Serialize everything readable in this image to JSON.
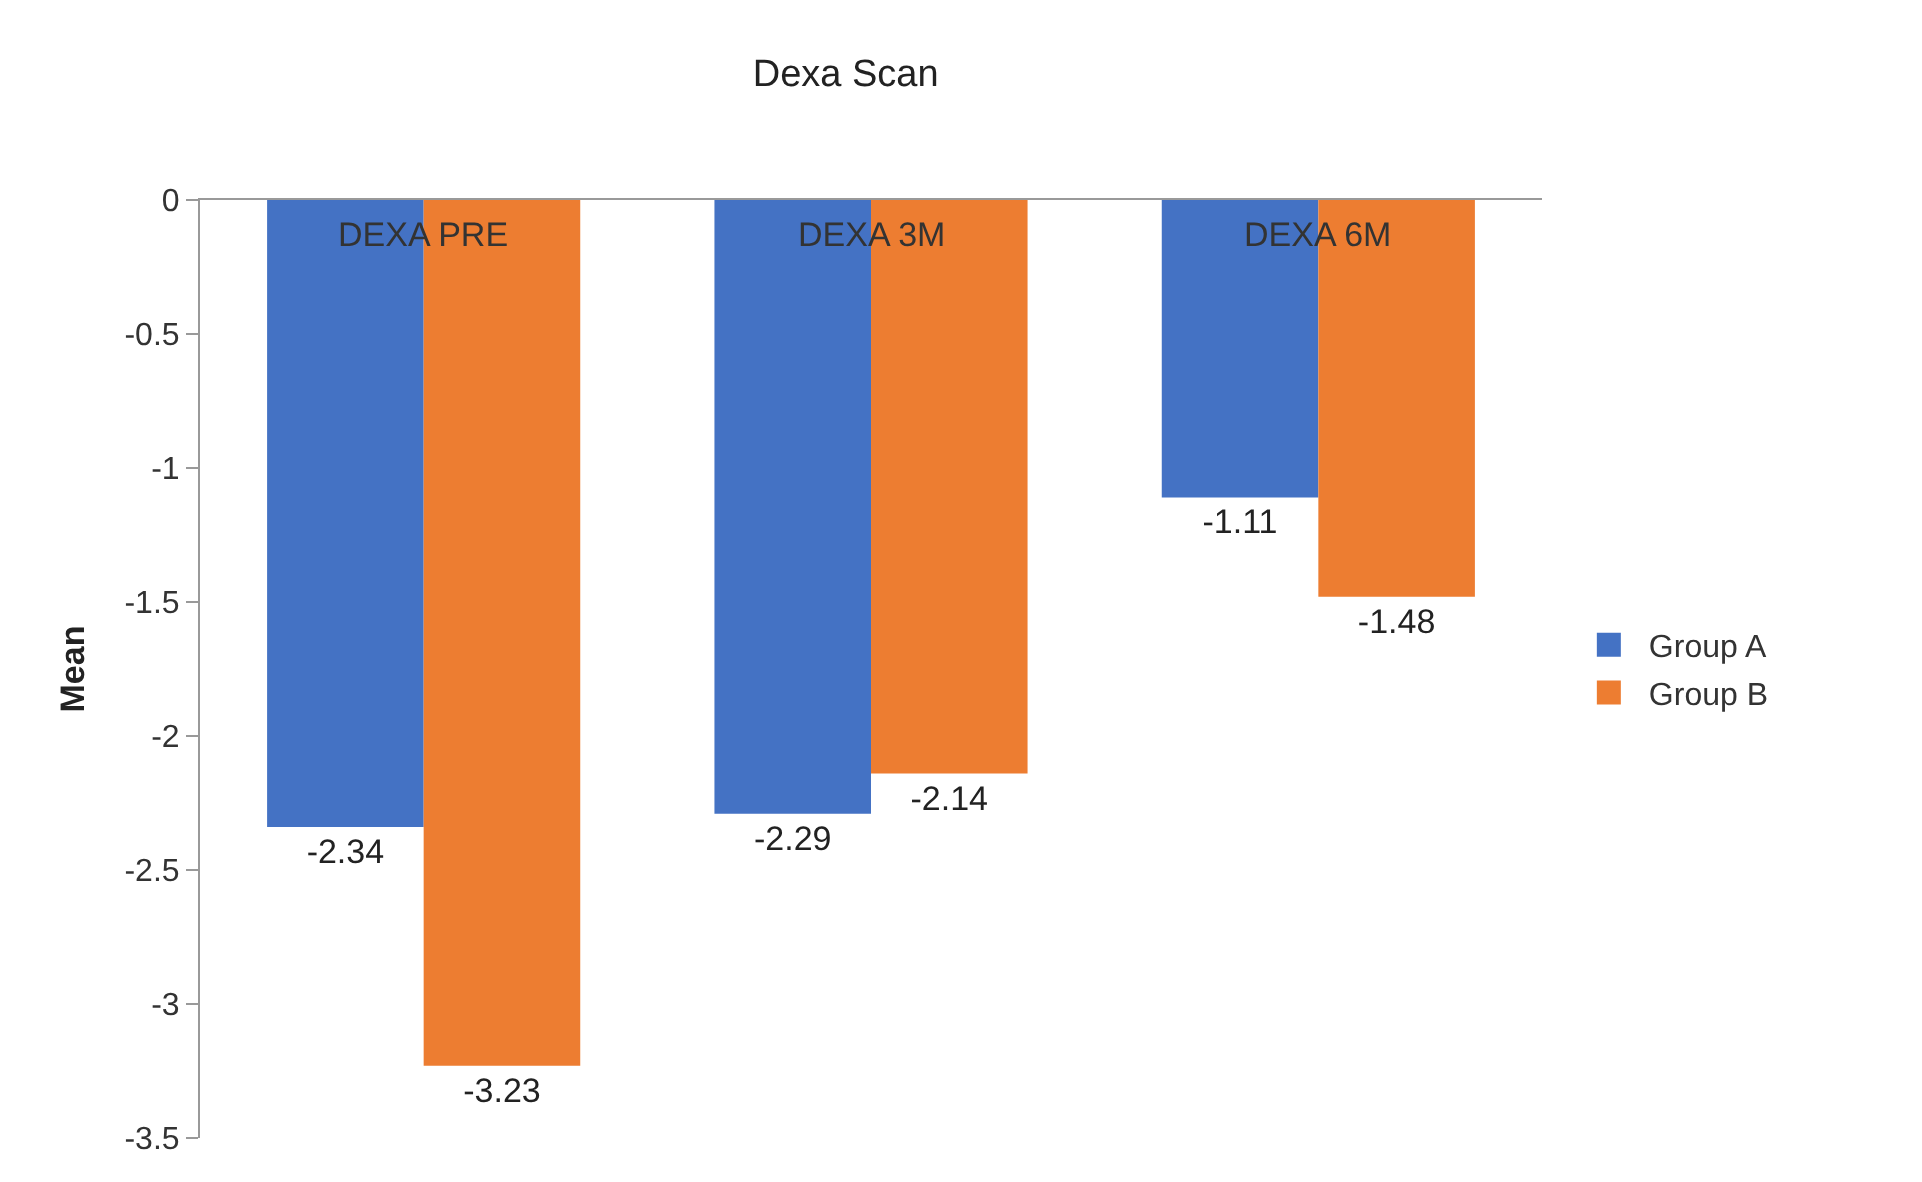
{
  "chart_data": {
    "type": "bar",
    "title": "Dexa Scan",
    "ylabel": "Mean",
    "categories": [
      "DEXA PRE",
      "DEXA 3M",
      "DEXA 6M"
    ],
    "series": [
      {
        "name": "Group A",
        "color": "#4472c4",
        "values": [
          -2.34,
          -2.29,
          -1.11
        ]
      },
      {
        "name": "Group B",
        "color": "#ed7d31",
        "values": [
          -3.23,
          -2.14,
          -1.48
        ]
      }
    ],
    "ylim": [
      -3.5,
      0
    ],
    "yticks": [
      0,
      -0.5,
      -1,
      -1.5,
      -2,
      -2.5,
      -3,
      -3.5
    ],
    "data_labels": true,
    "legend": "right"
  }
}
